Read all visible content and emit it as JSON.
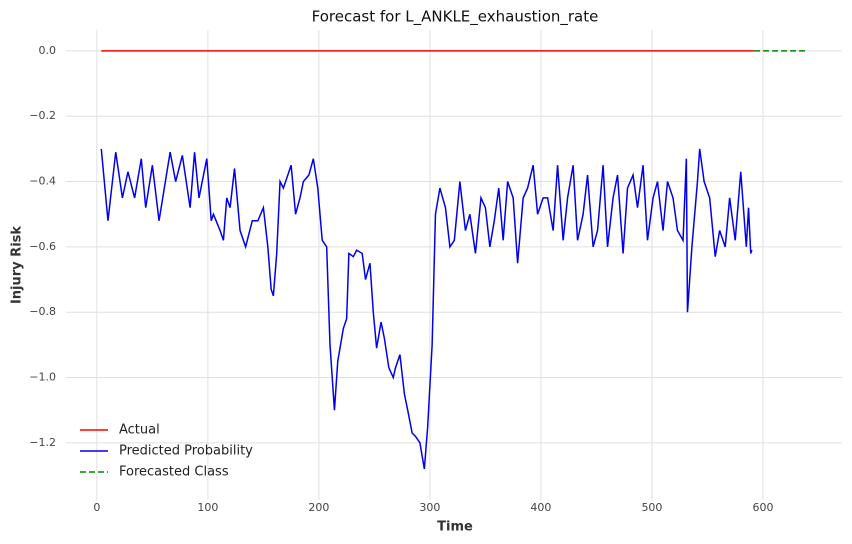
{
  "chart_data": {
    "type": "line",
    "title": "Forecast for L_ANKLE_exhaustion_rate",
    "x_label": "Time",
    "y_label": "Injury Risk",
    "xlim": [
      -27.8,
      671.2
    ],
    "ylim": [
      -1.375,
      0.064
    ],
    "xticks": [
      0,
      100,
      200,
      300,
      400,
      500,
      600
    ],
    "yticks": [
      {
        "value": 0,
        "label": "0.0"
      },
      {
        "value": -0.2,
        "label": "−0.2"
      },
      {
        "value": -0.4,
        "label": "−0.4"
      },
      {
        "value": -0.6,
        "label": "−0.6"
      },
      {
        "value": -0.8,
        "label": "−0.8"
      },
      {
        "value": -1.0,
        "label": "−1.0"
      },
      {
        "value": -1.2,
        "label": "−1.2"
      }
    ],
    "grid": true,
    "legend": "lower left",
    "series": [
      {
        "name": "Actual",
        "color": "#ff0000",
        "dash": false,
        "x": [
          4,
          592
        ],
        "values": [
          0,
          0
        ]
      },
      {
        "name": "Predicted Probability",
        "color": "#0000ee",
        "dash": false,
        "x": [
          4,
          10,
          17,
          23,
          28,
          34,
          40,
          44,
          50,
          56,
          66,
          71,
          77,
          84,
          88,
          92,
          99,
          103,
          105,
          111,
          114,
          117,
          120,
          124,
          129,
          134,
          140,
          145,
          150,
          154,
          157,
          159,
          162,
          165,
          168,
          175,
          179,
          183,
          186,
          191,
          195,
          199,
          203,
          207,
          210,
          214,
          217,
          222,
          225,
          227,
          231,
          234,
          239,
          242,
          246,
          249,
          252,
          256,
          259,
          263,
          267,
          269,
          273,
          277,
          280,
          284,
          287,
          291,
          295,
          298,
          302,
          305,
          309,
          314,
          318,
          322,
          327,
          332,
          336,
          341,
          346,
          350,
          354,
          358,
          362,
          366,
          370,
          375,
          379,
          384,
          388,
          393,
          397,
          402,
          406,
          411,
          415,
          420,
          424,
          429,
          433,
          438,
          442,
          447,
          451,
          456,
          460,
          465,
          469,
          474,
          478,
          483,
          487,
          492,
          496,
          501,
          505,
          510,
          514,
          519,
          523,
          528,
          531,
          532,
          536,
          541,
          543,
          547,
          552,
          557,
          561,
          566,
          570,
          575,
          580,
          585,
          587,
          589,
          590
        ],
        "values": [
          -0.3,
          -0.52,
          -0.31,
          -0.45,
          -0.37,
          -0.45,
          -0.33,
          -0.48,
          -0.35,
          -0.52,
          -0.31,
          -0.4,
          -0.32,
          -0.48,
          -0.31,
          -0.45,
          -0.33,
          -0.52,
          -0.5,
          -0.55,
          -0.58,
          -0.45,
          -0.48,
          -0.36,
          -0.55,
          -0.6,
          -0.52,
          -0.52,
          -0.48,
          -0.6,
          -0.73,
          -0.75,
          -0.62,
          -0.4,
          -0.42,
          -0.35,
          -0.5,
          -0.45,
          -0.4,
          -0.38,
          -0.33,
          -0.42,
          -0.58,
          -0.6,
          -0.9,
          -1.1,
          -0.95,
          -0.85,
          -0.82,
          -0.62,
          -0.63,
          -0.61,
          -0.62,
          -0.7,
          -0.65,
          -0.8,
          -0.91,
          -0.83,
          -0.88,
          -0.97,
          -1.0,
          -0.97,
          -0.93,
          -1.05,
          -1.1,
          -1.17,
          -1.18,
          -1.2,
          -1.28,
          -1.15,
          -0.9,
          -0.5,
          -0.42,
          -0.48,
          -0.6,
          -0.58,
          -0.4,
          -0.55,
          -0.5,
          -0.62,
          -0.45,
          -0.48,
          -0.6,
          -0.52,
          -0.42,
          -0.58,
          -0.4,
          -0.45,
          -0.65,
          -0.45,
          -0.42,
          -0.35,
          -0.5,
          -0.45,
          -0.45,
          -0.55,
          -0.35,
          -0.58,
          -0.45,
          -0.35,
          -0.58,
          -0.5,
          -0.38,
          -0.6,
          -0.55,
          -0.35,
          -0.6,
          -0.45,
          -0.38,
          -0.62,
          -0.42,
          -0.38,
          -0.48,
          -0.35,
          -0.58,
          -0.45,
          -0.4,
          -0.55,
          -0.4,
          -0.45,
          -0.55,
          -0.58,
          -0.33,
          -0.8,
          -0.6,
          -0.4,
          -0.3,
          -0.4,
          -0.45,
          -0.63,
          -0.55,
          -0.6,
          -0.45,
          -0.58,
          -0.37,
          -0.6,
          -0.48,
          -0.62,
          -0.61
        ]
      },
      {
        "name": "Forecasted Class",
        "color": "#008800",
        "dash": true,
        "x": [
          592,
          640
        ],
        "values": [
          0,
          0
        ]
      }
    ]
  }
}
